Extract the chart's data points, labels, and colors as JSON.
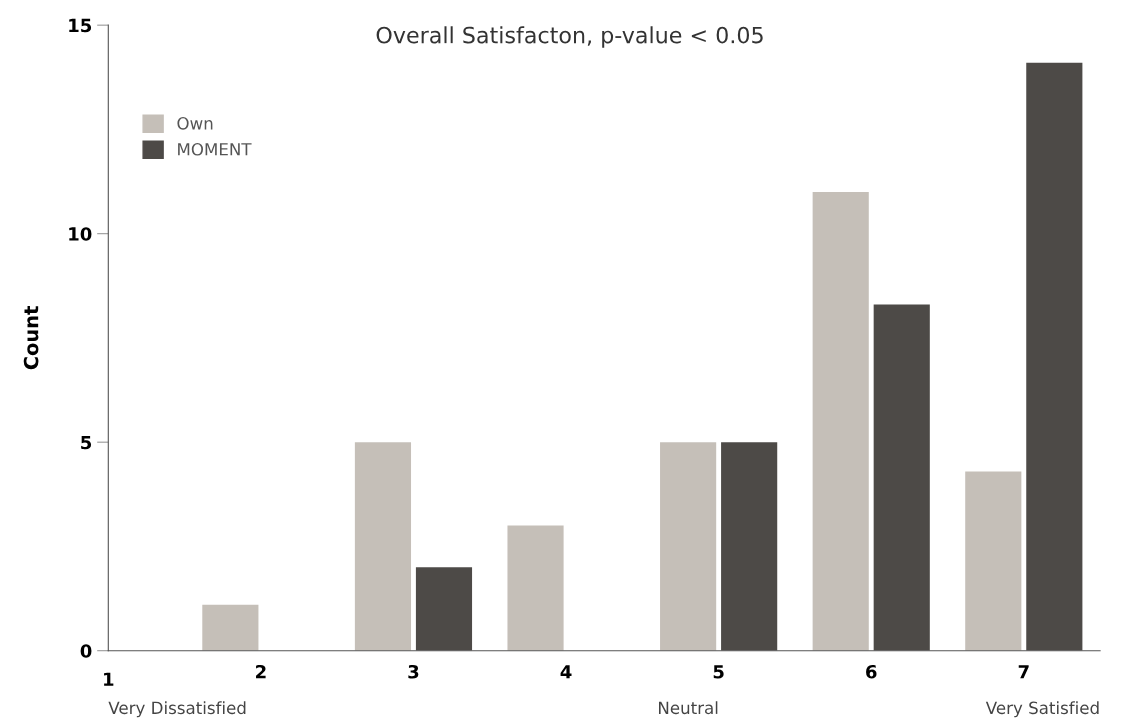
{
  "chart_data": {
    "type": "bar",
    "title": "Overall Satisfacton, p-value < 0.05",
    "ylabel": "Count",
    "categories": [
      "2",
      "3",
      "4",
      "5",
      "6",
      "7"
    ],
    "series": [
      {
        "name": "Own",
        "color": "#c5bfb8",
        "values": [
          1.1,
          5,
          3,
          5,
          11,
          4.3
        ]
      },
      {
        "name": "MOMENT",
        "color": "#4d4a47",
        "values": [
          0,
          2,
          0,
          5,
          8.3,
          14.1
        ]
      }
    ],
    "ylim": [
      0,
      15
    ],
    "yticks": [
      0,
      5,
      10,
      15
    ],
    "grid": false,
    "legend": "top left",
    "annotations": [
      "1",
      "Very Dissatisfied",
      "Neutral",
      "Very Satisfied"
    ]
  }
}
